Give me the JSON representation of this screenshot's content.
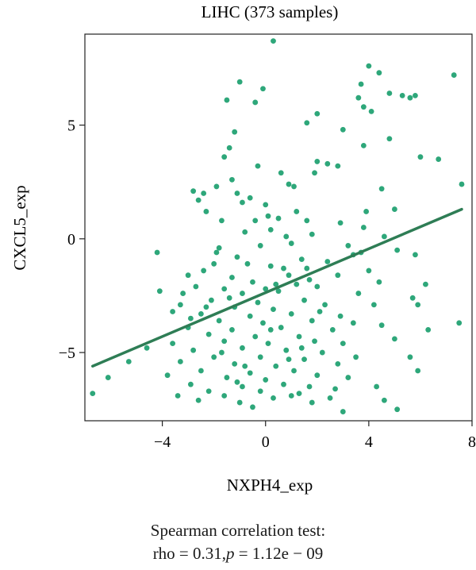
{
  "chart_data": {
    "type": "scatter",
    "title": "LIHC (373 samples)",
    "xlabel": "NXPH4_exp",
    "ylabel": "CXCL5_exp",
    "xlim": [
      -7,
      8
    ],
    "ylim": [
      -8,
      9
    ],
    "xticks": [
      -4,
      0,
      4,
      8
    ],
    "xtick_labels": [
      "−4",
      "0",
      "4",
      "8"
    ],
    "yticks": [
      -5,
      0,
      5
    ],
    "ytick_labels": [
      "−5",
      "0",
      "5"
    ],
    "grid": false,
    "legend": "none",
    "point_color": "#2ea77a",
    "line_color": "#2e7d55",
    "regression_line": {
      "x": [
        -6.7,
        7.6
      ],
      "y": [
        -5.6,
        1.3
      ]
    },
    "points": [
      {
        "x": 0.3,
        "y": 8.7
      },
      {
        "x": 4.0,
        "y": 7.6
      },
      {
        "x": 4.4,
        "y": 7.3
      },
      {
        "x": 7.3,
        "y": 7.2
      },
      {
        "x": -1.0,
        "y": 6.9
      },
      {
        "x": 3.7,
        "y": 6.8
      },
      {
        "x": -0.1,
        "y": 6.6
      },
      {
        "x": 4.8,
        "y": 6.4
      },
      {
        "x": 3.6,
        "y": 6.2
      },
      {
        "x": 5.3,
        "y": 6.3
      },
      {
        "x": 5.6,
        "y": 6.2
      },
      {
        "x": 5.8,
        "y": 6.3
      },
      {
        "x": -1.5,
        "y": 6.1
      },
      {
        "x": -0.4,
        "y": 6.0
      },
      {
        "x": 3.8,
        "y": 5.8
      },
      {
        "x": 4.1,
        "y": 5.6
      },
      {
        "x": 2.0,
        "y": 5.5
      },
      {
        "x": 1.6,
        "y": 5.1
      },
      {
        "x": 3.0,
        "y": 4.8
      },
      {
        "x": -1.2,
        "y": 4.7
      },
      {
        "x": 4.8,
        "y": 4.4
      },
      {
        "x": 3.8,
        "y": 4.1
      },
      {
        "x": -1.4,
        "y": 4.0
      },
      {
        "x": -1.6,
        "y": 3.6
      },
      {
        "x": 6.0,
        "y": 3.6
      },
      {
        "x": 6.7,
        "y": 3.5
      },
      {
        "x": 2.0,
        "y": 3.4
      },
      {
        "x": 2.4,
        "y": 3.3
      },
      {
        "x": -0.3,
        "y": 3.2
      },
      {
        "x": 2.8,
        "y": 3.2
      },
      {
        "x": 0.6,
        "y": 2.9
      },
      {
        "x": 1.9,
        "y": 2.9
      },
      {
        "x": -1.3,
        "y": 2.6
      },
      {
        "x": 0.9,
        "y": 2.4
      },
      {
        "x": 1.1,
        "y": 2.3
      },
      {
        "x": 7.6,
        "y": 2.4
      },
      {
        "x": -2.8,
        "y": 2.1
      },
      {
        "x": -2.4,
        "y": 2.0
      },
      {
        "x": -1.9,
        "y": 2.3
      },
      {
        "x": 4.5,
        "y": 2.2
      },
      {
        "x": -1.1,
        "y": 2.0
      },
      {
        "x": -0.6,
        "y": 1.8
      },
      {
        "x": -2.6,
        "y": 1.7
      },
      {
        "x": -0.9,
        "y": 1.6
      },
      {
        "x": 0.0,
        "y": 1.5
      },
      {
        "x": -2.3,
        "y": 1.2
      },
      {
        "x": 3.9,
        "y": 1.2
      },
      {
        "x": 5.0,
        "y": 1.3
      },
      {
        "x": 1.2,
        "y": 1.2
      },
      {
        "x": 0.1,
        "y": 1.0
      },
      {
        "x": 0.5,
        "y": 0.9
      },
      {
        "x": -1.7,
        "y": 0.8
      },
      {
        "x": 1.6,
        "y": 0.8
      },
      {
        "x": 2.9,
        "y": 0.7
      },
      {
        "x": 3.8,
        "y": 0.5
      },
      {
        "x": 0.2,
        "y": 0.4
      },
      {
        "x": -0.8,
        "y": 0.3
      },
      {
        "x": 1.8,
        "y": 0.2
      },
      {
        "x": 4.6,
        "y": 0.1
      },
      {
        "x": 1.0,
        "y": -0.2
      },
      {
        "x": -1.8,
        "y": -0.4
      },
      {
        "x": -0.2,
        "y": -0.3
      },
      {
        "x": 3.2,
        "y": -0.3
      },
      {
        "x": 5.1,
        "y": -0.5
      },
      {
        "x": -4.2,
        "y": -0.6
      },
      {
        "x": -1.1,
        "y": -0.8
      },
      {
        "x": 1.4,
        "y": -0.9
      },
      {
        "x": 3.4,
        "y": -0.7
      },
      {
        "x": 5.8,
        "y": -0.7
      },
      {
        "x": -2.0,
        "y": -1.1
      },
      {
        "x": 0.2,
        "y": -1.2
      },
      {
        "x": 2.4,
        "y": -1.0
      },
      {
        "x": 0.7,
        "y": -1.3
      },
      {
        "x": -2.4,
        "y": -1.4
      },
      {
        "x": 1.6,
        "y": -1.3
      },
      {
        "x": 4.0,
        "y": -1.4
      },
      {
        "x": -3.0,
        "y": -1.6
      },
      {
        "x": -1.3,
        "y": -1.7
      },
      {
        "x": 0.9,
        "y": -1.6
      },
      {
        "x": 2.8,
        "y": -1.6
      },
      {
        "x": -0.5,
        "y": -1.9
      },
      {
        "x": 1.2,
        "y": -2.0
      },
      {
        "x": 4.4,
        "y": -1.9
      },
      {
        "x": -2.7,
        "y": -2.1
      },
      {
        "x": -1.6,
        "y": -2.2
      },
      {
        "x": 0.0,
        "y": -2.2
      },
      {
        "x": 2.0,
        "y": -2.1
      },
      {
        "x": -4.1,
        "y": -2.3
      },
      {
        "x": -3.2,
        "y": -2.4
      },
      {
        "x": -0.9,
        "y": -2.4
      },
      {
        "x": 0.5,
        "y": -2.3
      },
      {
        "x": 3.6,
        "y": -2.4
      },
      {
        "x": 5.7,
        "y": -2.6
      },
      {
        "x": 6.2,
        "y": -2.0
      },
      {
        "x": -2.1,
        "y": -2.7
      },
      {
        "x": -0.3,
        "y": -2.8
      },
      {
        "x": 1.5,
        "y": -2.7
      },
      {
        "x": 4.2,
        "y": -2.9
      },
      {
        "x": -3.3,
        "y": -2.9
      },
      {
        "x": -1.2,
        "y": -3.0
      },
      {
        "x": 0.3,
        "y": -3.1
      },
      {
        "x": 2.3,
        "y": -2.9
      },
      {
        "x": 5.9,
        "y": -2.9
      },
      {
        "x": -2.5,
        "y": -3.3
      },
      {
        "x": -0.6,
        "y": -3.4
      },
      {
        "x": 1.0,
        "y": -3.3
      },
      {
        "x": 2.9,
        "y": -3.4
      },
      {
        "x": -1.8,
        "y": -3.6
      },
      {
        "x": -0.1,
        "y": -3.7
      },
      {
        "x": 1.8,
        "y": -3.6
      },
      {
        "x": 3.4,
        "y": -3.7
      },
      {
        "x": 4.5,
        "y": -3.8
      },
      {
        "x": 7.5,
        "y": -3.7
      },
      {
        "x": -3.0,
        "y": -3.9
      },
      {
        "x": -1.3,
        "y": -4.0
      },
      {
        "x": 0.6,
        "y": -3.9
      },
      {
        "x": 2.6,
        "y": -4.0
      },
      {
        "x": 6.3,
        "y": -4.0
      },
      {
        "x": -2.2,
        "y": -4.2
      },
      {
        "x": -0.4,
        "y": -4.3
      },
      {
        "x": 1.3,
        "y": -4.3
      },
      {
        "x": -3.6,
        "y": -4.6
      },
      {
        "x": -1.6,
        "y": -4.5
      },
      {
        "x": 0.1,
        "y": -4.6
      },
      {
        "x": 1.9,
        "y": -4.5
      },
      {
        "x": 3.0,
        "y": -4.6
      },
      {
        "x": 5.0,
        "y": -4.4
      },
      {
        "x": -2.8,
        "y": -4.9
      },
      {
        "x": -0.9,
        "y": -4.8
      },
      {
        "x": 0.8,
        "y": -4.9
      },
      {
        "x": 2.2,
        "y": -5.0
      },
      {
        "x": -4.6,
        "y": -4.8
      },
      {
        "x": -2.0,
        "y": -5.2
      },
      {
        "x": -0.2,
        "y": -5.2
      },
      {
        "x": 1.5,
        "y": -5.3
      },
      {
        "x": 5.6,
        "y": -5.2
      },
      {
        "x": -3.3,
        "y": -5.4
      },
      {
        "x": -1.2,
        "y": -5.5
      },
      {
        "x": 0.4,
        "y": -5.6
      },
      {
        "x": 2.8,
        "y": -5.5
      },
      {
        "x": -5.3,
        "y": -5.4
      },
      {
        "x": -2.5,
        "y": -5.8
      },
      {
        "x": -0.6,
        "y": -5.9
      },
      {
        "x": 1.1,
        "y": -5.8
      },
      {
        "x": 5.9,
        "y": -5.8
      },
      {
        "x": -3.8,
        "y": -6.0
      },
      {
        "x": -1.5,
        "y": -6.1
      },
      {
        "x": 0.0,
        "y": -6.2
      },
      {
        "x": 2.0,
        "y": -6.0
      },
      {
        "x": 3.2,
        "y": -6.1
      },
      {
        "x": -6.1,
        "y": -6.1
      },
      {
        "x": -2.9,
        "y": -6.4
      },
      {
        "x": -0.9,
        "y": -6.5
      },
      {
        "x": 0.7,
        "y": -6.4
      },
      {
        "x": 1.7,
        "y": -6.5
      },
      {
        "x": -2.2,
        "y": -6.7
      },
      {
        "x": -0.2,
        "y": -6.7
      },
      {
        "x": 1.3,
        "y": -6.8
      },
      {
        "x": 4.3,
        "y": -6.5
      },
      {
        "x": -6.7,
        "y": -6.8
      },
      {
        "x": -3.4,
        "y": -6.9
      },
      {
        "x": -1.6,
        "y": -6.9
      },
      {
        "x": 0.3,
        "y": -7.0
      },
      {
        "x": 2.5,
        "y": -7.0
      },
      {
        "x": -2.6,
        "y": -7.1
      },
      {
        "x": -1.0,
        "y": -7.2
      },
      {
        "x": 1.8,
        "y": -7.2
      },
      {
        "x": 4.6,
        "y": -7.1
      },
      {
        "x": 5.1,
        "y": -7.5
      },
      {
        "x": 3.0,
        "y": -7.6
      },
      {
        "x": -0.5,
        "y": -7.4
      },
      {
        "x": 1.0,
        "y": -6.9
      },
      {
        "x": -1.9,
        "y": -0.6
      },
      {
        "x": -0.7,
        "y": -1.1
      },
      {
        "x": 0.8,
        "y": 0.1
      },
      {
        "x": -2.9,
        "y": -3.5
      },
      {
        "x": -1.4,
        "y": -2.6
      },
      {
        "x": 0.4,
        "y": -2.0
      },
      {
        "x": 1.4,
        "y": -4.8
      },
      {
        "x": -0.8,
        "y": -5.6
      },
      {
        "x": 2.7,
        "y": -6.6
      },
      {
        "x": -2.3,
        "y": -3.0
      },
      {
        "x": 0.9,
        "y": -5.3
      },
      {
        "x": -1.1,
        "y": -6.3
      },
      {
        "x": 3.7,
        "y": -0.6
      },
      {
        "x": 2.1,
        "y": -3.2
      },
      {
        "x": -0.4,
        "y": 0.8
      },
      {
        "x": 1.7,
        "y": -1.8
      },
      {
        "x": -3.6,
        "y": -3.2
      },
      {
        "x": -1.7,
        "y": -5.0
      },
      {
        "x": 0.2,
        "y": -4.0
      },
      {
        "x": 3.5,
        "y": -5.2
      }
    ],
    "annotation": {
      "title": "Spearman correlation test:",
      "rho_text": "rho = 0.31,",
      "p_symbol": "p",
      "p_text": " = 1.12e − 09"
    }
  }
}
